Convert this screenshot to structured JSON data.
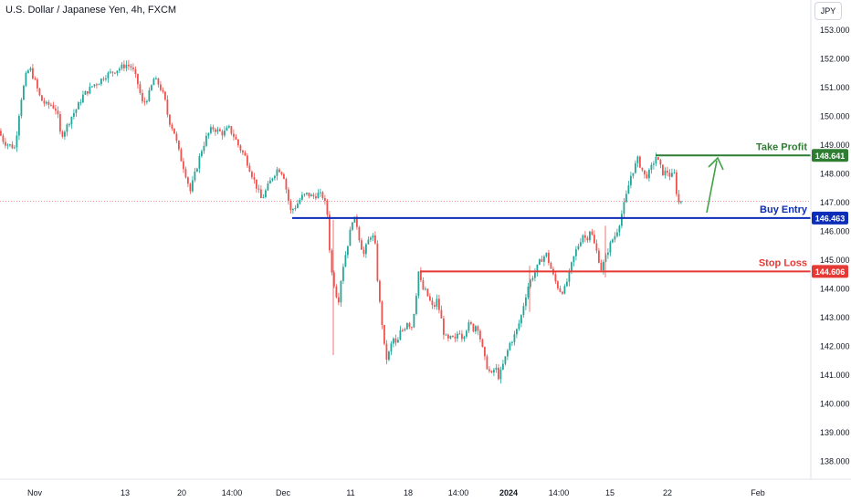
{
  "header": {
    "title": "U.S. Dollar / Japanese Yen, 4h, FXCM",
    "currency": "JPY"
  },
  "chart_data": {
    "type": "candlestick",
    "title": "U.S. Dollar / Japanese Yen, 4h, FXCM",
    "ylim": [
      137.6,
      153.6
    ],
    "y_ticks": [
      "153.000",
      "152.000",
      "151.000",
      "150.000",
      "149.000",
      "148.000",
      "147.000",
      "146.000",
      "145.000",
      "144.000",
      "143.000",
      "142.000",
      "141.000",
      "140.000",
      "139.000",
      "138.000"
    ],
    "x_ticks": [
      "Nov",
      "13",
      "20",
      "14:00",
      "Dec",
      "11",
      "18",
      "14:00",
      "2024",
      "14:00",
      "15",
      "22",
      "Feb"
    ],
    "grid": false,
    "colors": {
      "up": "#26a69a",
      "down": "#ef5350",
      "take_profit": "#2e7d32",
      "entry": "#0c2db8",
      "stop": "#e53935",
      "arrow": "#43a047"
    },
    "levels": [
      {
        "name": "Take Profit",
        "value": 148.641,
        "value_label": "148.641",
        "color": "#2e7d32"
      },
      {
        "name": "Buy Entry",
        "value": 146.463,
        "value_label": "146.463",
        "color": "#0c2db8"
      },
      {
        "name": "Stop Loss",
        "value": 144.606,
        "value_label": "144.606",
        "color": "#e53935"
      }
    ],
    "last_price": 147.05,
    "price_path": [
      [
        0,
        149.5
      ],
      [
        6,
        149.1
      ],
      [
        12,
        149.0
      ],
      [
        18,
        148.9
      ],
      [
        24,
        150.5
      ],
      [
        30,
        151.4
      ],
      [
        34,
        151.7
      ],
      [
        40,
        151.2
      ],
      [
        46,
        150.6
      ],
      [
        52,
        150.4
      ],
      [
        58,
        150.4
      ],
      [
        64,
        150.2
      ],
      [
        68,
        149.3
      ],
      [
        74,
        149.6
      ],
      [
        80,
        150.0
      ],
      [
        86,
        150.3
      ],
      [
        92,
        150.7
      ],
      [
        98,
        150.9
      ],
      [
        104,
        151.1
      ],
      [
        110,
        151.2
      ],
      [
        116,
        151.4
      ],
      [
        122,
        151.5
      ],
      [
        128,
        151.6
      ],
      [
        134,
        151.7
      ],
      [
        140,
        151.8
      ],
      [
        146,
        151.7
      ],
      [
        152,
        151.2
      ],
      [
        158,
        150.4
      ],
      [
        164,
        150.7
      ],
      [
        170,
        151.3
      ],
      [
        176,
        151.1
      ],
      [
        182,
        150.6
      ],
      [
        186,
        149.9
      ],
      [
        192,
        149.5
      ],
      [
        198,
        148.7
      ],
      [
        204,
        148.1
      ],
      [
        210,
        147.4
      ],
      [
        216,
        148.1
      ],
      [
        222,
        148.8
      ],
      [
        228,
        149.3
      ],
      [
        234,
        149.6
      ],
      [
        240,
        149.5
      ],
      [
        246,
        149.4
      ],
      [
        252,
        149.6
      ],
      [
        258,
        149.3
      ],
      [
        264,
        148.9
      ],
      [
        270,
        148.6
      ],
      [
        276,
        148.1
      ],
      [
        282,
        147.6
      ],
      [
        288,
        147.1
      ],
      [
        294,
        147.5
      ],
      [
        300,
        147.9
      ],
      [
        306,
        148.2
      ],
      [
        312,
        148.0
      ],
      [
        316,
        147.3
      ],
      [
        320,
        146.7
      ],
      [
        326,
        146.9
      ],
      [
        332,
        147.2
      ],
      [
        338,
        147.3
      ],
      [
        344,
        147.2
      ],
      [
        350,
        147.3
      ],
      [
        356,
        147.2
      ],
      [
        360,
        146.6
      ],
      [
        364,
        144.7
      ],
      [
        368,
        144.1
      ],
      [
        372,
        143.5
      ],
      [
        376,
        144.6
      ],
      [
        380,
        145.2
      ],
      [
        384,
        145.8
      ],
      [
        388,
        146.5
      ],
      [
        392,
        146.3
      ],
      [
        396,
        145.6
      ],
      [
        400,
        145.2
      ],
      [
        404,
        145.6
      ],
      [
        408,
        145.9
      ],
      [
        412,
        145.7
      ],
      [
        416,
        143.9
      ],
      [
        420,
        142.8
      ],
      [
        424,
        141.5
      ],
      [
        428,
        141.8
      ],
      [
        432,
        142.3
      ],
      [
        436,
        142.0
      ],
      [
        440,
        142.5
      ],
      [
        444,
        142.6
      ],
      [
        448,
        142.9
      ],
      [
        452,
        142.6
      ],
      [
        456,
        143.4
      ],
      [
        460,
        144.6
      ],
      [
        464,
        144.0
      ],
      [
        468,
        143.9
      ],
      [
        472,
        143.6
      ],
      [
        476,
        143.3
      ],
      [
        480,
        143.6
      ],
      [
        484,
        143.1
      ],
      [
        488,
        142.4
      ],
      [
        492,
        142.2
      ],
      [
        496,
        142.3
      ],
      [
        500,
        142.2
      ],
      [
        504,
        142.6
      ],
      [
        508,
        142.3
      ],
      [
        512,
        142.6
      ],
      [
        516,
        142.8
      ],
      [
        520,
        142.6
      ],
      [
        524,
        142.8
      ],
      [
        528,
        142.2
      ],
      [
        532,
        141.6
      ],
      [
        536,
        141.2
      ],
      [
        540,
        141.0
      ],
      [
        544,
        141.3
      ],
      [
        548,
        140.9
      ],
      [
        552,
        141.3
      ],
      [
        556,
        141.7
      ],
      [
        560,
        142.1
      ],
      [
        564,
        142.3
      ],
      [
        568,
        142.6
      ],
      [
        572,
        143.0
      ],
      [
        576,
        143.6
      ],
      [
        580,
        144.1
      ],
      [
        584,
        144.4
      ],
      [
        588,
        144.6
      ],
      [
        592,
        144.9
      ],
      [
        596,
        145.1
      ],
      [
        600,
        145.2
      ],
      [
        604,
        144.8
      ],
      [
        608,
        144.4
      ],
      [
        612,
        144.1
      ],
      [
        616,
        143.9
      ],
      [
        620,
        144.0
      ],
      [
        624,
        144.4
      ],
      [
        628,
        144.9
      ],
      [
        632,
        145.3
      ],
      [
        636,
        145.6
      ],
      [
        640,
        145.9
      ],
      [
        644,
        145.7
      ],
      [
        648,
        146.1
      ],
      [
        652,
        145.6
      ],
      [
        656,
        145.2
      ],
      [
        660,
        144.7
      ],
      [
        664,
        145.0
      ],
      [
        668,
        145.4
      ],
      [
        672,
        145.7
      ],
      [
        676,
        145.9
      ],
      [
        680,
        146.3
      ],
      [
        684,
        146.8
      ],
      [
        688,
        147.3
      ],
      [
        692,
        147.9
      ],
      [
        696,
        148.2
      ],
      [
        700,
        148.5
      ],
      [
        704,
        148.2
      ],
      [
        708,
        147.9
      ],
      [
        712,
        148.0
      ],
      [
        716,
        148.3
      ],
      [
        720,
        148.6
      ],
      [
        724,
        148.3
      ],
      [
        728,
        148.0
      ],
      [
        732,
        148.1
      ],
      [
        736,
        147.9
      ],
      [
        740,
        148.0
      ],
      [
        744,
        147.0
      ]
    ]
  }
}
